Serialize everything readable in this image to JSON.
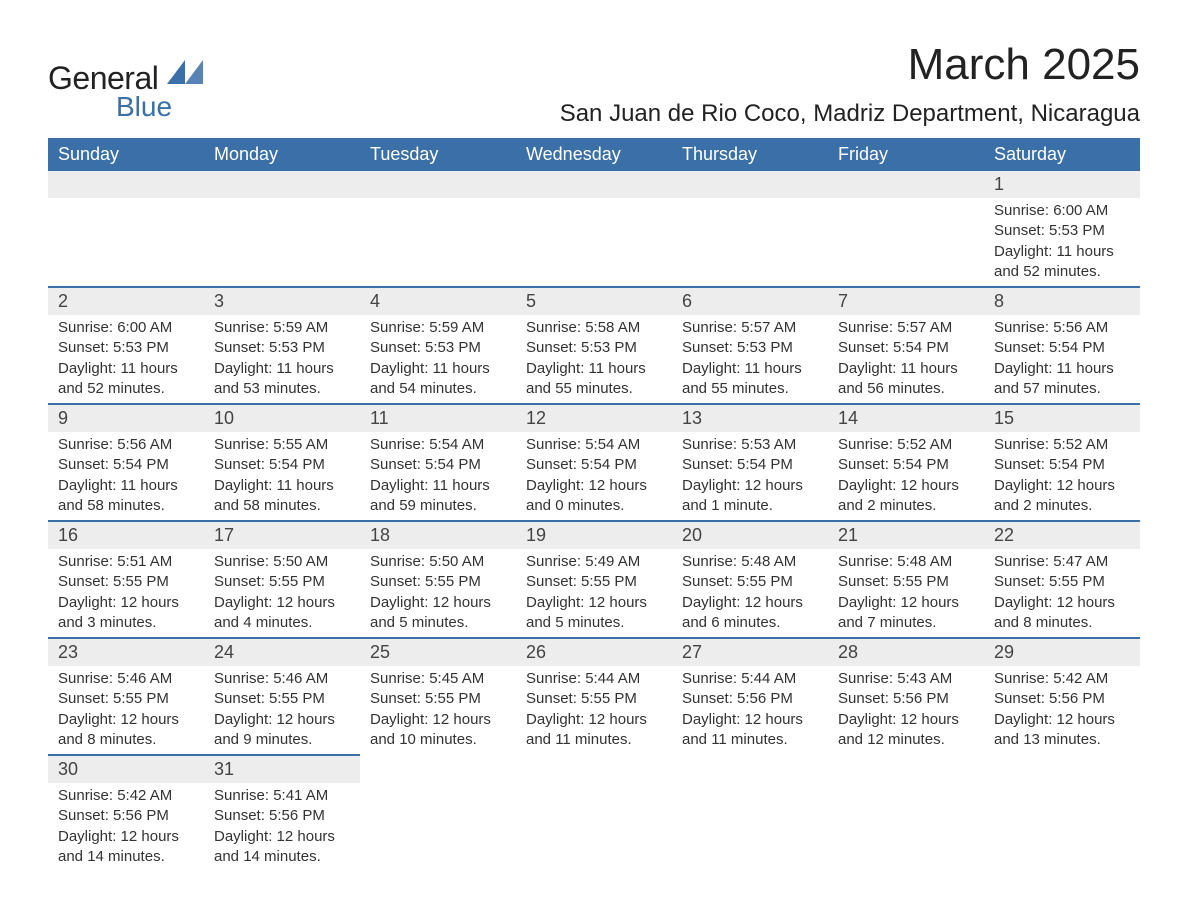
{
  "logo": {
    "top": "General",
    "bottom": "Blue",
    "icon_color": "#3a6fa8"
  },
  "title": "March 2025",
  "location": "San Juan de Rio Coco, Madriz Department, Nicaragua",
  "colors": {
    "header_bg": "#3a6fa8",
    "header_text": "#ffffff",
    "daynum_bg": "#ededed",
    "border": "#3a6fa8",
    "text": "#333333"
  },
  "day_headers": [
    "Sunday",
    "Monday",
    "Tuesday",
    "Wednesday",
    "Thursday",
    "Friday",
    "Saturday"
  ],
  "weeks": [
    [
      null,
      null,
      null,
      null,
      null,
      null,
      {
        "num": "1",
        "sunrise": "Sunrise: 6:00 AM",
        "sunset": "Sunset: 5:53 PM",
        "daylight": "Daylight: 11 hours and 52 minutes."
      }
    ],
    [
      {
        "num": "2",
        "sunrise": "Sunrise: 6:00 AM",
        "sunset": "Sunset: 5:53 PM",
        "daylight": "Daylight: 11 hours and 52 minutes."
      },
      {
        "num": "3",
        "sunrise": "Sunrise: 5:59 AM",
        "sunset": "Sunset: 5:53 PM",
        "daylight": "Daylight: 11 hours and 53 minutes."
      },
      {
        "num": "4",
        "sunrise": "Sunrise: 5:59 AM",
        "sunset": "Sunset: 5:53 PM",
        "daylight": "Daylight: 11 hours and 54 minutes."
      },
      {
        "num": "5",
        "sunrise": "Sunrise: 5:58 AM",
        "sunset": "Sunset: 5:53 PM",
        "daylight": "Daylight: 11 hours and 55 minutes."
      },
      {
        "num": "6",
        "sunrise": "Sunrise: 5:57 AM",
        "sunset": "Sunset: 5:53 PM",
        "daylight": "Daylight: 11 hours and 55 minutes."
      },
      {
        "num": "7",
        "sunrise": "Sunrise: 5:57 AM",
        "sunset": "Sunset: 5:54 PM",
        "daylight": "Daylight: 11 hours and 56 minutes."
      },
      {
        "num": "8",
        "sunrise": "Sunrise: 5:56 AM",
        "sunset": "Sunset: 5:54 PM",
        "daylight": "Daylight: 11 hours and 57 minutes."
      }
    ],
    [
      {
        "num": "9",
        "sunrise": "Sunrise: 5:56 AM",
        "sunset": "Sunset: 5:54 PM",
        "daylight": "Daylight: 11 hours and 58 minutes."
      },
      {
        "num": "10",
        "sunrise": "Sunrise: 5:55 AM",
        "sunset": "Sunset: 5:54 PM",
        "daylight": "Daylight: 11 hours and 58 minutes."
      },
      {
        "num": "11",
        "sunrise": "Sunrise: 5:54 AM",
        "sunset": "Sunset: 5:54 PM",
        "daylight": "Daylight: 11 hours and 59 minutes."
      },
      {
        "num": "12",
        "sunrise": "Sunrise: 5:54 AM",
        "sunset": "Sunset: 5:54 PM",
        "daylight": "Daylight: 12 hours and 0 minutes."
      },
      {
        "num": "13",
        "sunrise": "Sunrise: 5:53 AM",
        "sunset": "Sunset: 5:54 PM",
        "daylight": "Daylight: 12 hours and 1 minute."
      },
      {
        "num": "14",
        "sunrise": "Sunrise: 5:52 AM",
        "sunset": "Sunset: 5:54 PM",
        "daylight": "Daylight: 12 hours and 2 minutes."
      },
      {
        "num": "15",
        "sunrise": "Sunrise: 5:52 AM",
        "sunset": "Sunset: 5:54 PM",
        "daylight": "Daylight: 12 hours and 2 minutes."
      }
    ],
    [
      {
        "num": "16",
        "sunrise": "Sunrise: 5:51 AM",
        "sunset": "Sunset: 5:55 PM",
        "daylight": "Daylight: 12 hours and 3 minutes."
      },
      {
        "num": "17",
        "sunrise": "Sunrise: 5:50 AM",
        "sunset": "Sunset: 5:55 PM",
        "daylight": "Daylight: 12 hours and 4 minutes."
      },
      {
        "num": "18",
        "sunrise": "Sunrise: 5:50 AM",
        "sunset": "Sunset: 5:55 PM",
        "daylight": "Daylight: 12 hours and 5 minutes."
      },
      {
        "num": "19",
        "sunrise": "Sunrise: 5:49 AM",
        "sunset": "Sunset: 5:55 PM",
        "daylight": "Daylight: 12 hours and 5 minutes."
      },
      {
        "num": "20",
        "sunrise": "Sunrise: 5:48 AM",
        "sunset": "Sunset: 5:55 PM",
        "daylight": "Daylight: 12 hours and 6 minutes."
      },
      {
        "num": "21",
        "sunrise": "Sunrise: 5:48 AM",
        "sunset": "Sunset: 5:55 PM",
        "daylight": "Daylight: 12 hours and 7 minutes."
      },
      {
        "num": "22",
        "sunrise": "Sunrise: 5:47 AM",
        "sunset": "Sunset: 5:55 PM",
        "daylight": "Daylight: 12 hours and 8 minutes."
      }
    ],
    [
      {
        "num": "23",
        "sunrise": "Sunrise: 5:46 AM",
        "sunset": "Sunset: 5:55 PM",
        "daylight": "Daylight: 12 hours and 8 minutes."
      },
      {
        "num": "24",
        "sunrise": "Sunrise: 5:46 AM",
        "sunset": "Sunset: 5:55 PM",
        "daylight": "Daylight: 12 hours and 9 minutes."
      },
      {
        "num": "25",
        "sunrise": "Sunrise: 5:45 AM",
        "sunset": "Sunset: 5:55 PM",
        "daylight": "Daylight: 12 hours and 10 minutes."
      },
      {
        "num": "26",
        "sunrise": "Sunrise: 5:44 AM",
        "sunset": "Sunset: 5:55 PM",
        "daylight": "Daylight: 12 hours and 11 minutes."
      },
      {
        "num": "27",
        "sunrise": "Sunrise: 5:44 AM",
        "sunset": "Sunset: 5:56 PM",
        "daylight": "Daylight: 12 hours and 11 minutes."
      },
      {
        "num": "28",
        "sunrise": "Sunrise: 5:43 AM",
        "sunset": "Sunset: 5:56 PM",
        "daylight": "Daylight: 12 hours and 12 minutes."
      },
      {
        "num": "29",
        "sunrise": "Sunrise: 5:42 AM",
        "sunset": "Sunset: 5:56 PM",
        "daylight": "Daylight: 12 hours and 13 minutes."
      }
    ],
    [
      {
        "num": "30",
        "sunrise": "Sunrise: 5:42 AM",
        "sunset": "Sunset: 5:56 PM",
        "daylight": "Daylight: 12 hours and 14 minutes."
      },
      {
        "num": "31",
        "sunrise": "Sunrise: 5:41 AM",
        "sunset": "Sunset: 5:56 PM",
        "daylight": "Daylight: 12 hours and 14 minutes."
      },
      null,
      null,
      null,
      null,
      null
    ]
  ]
}
